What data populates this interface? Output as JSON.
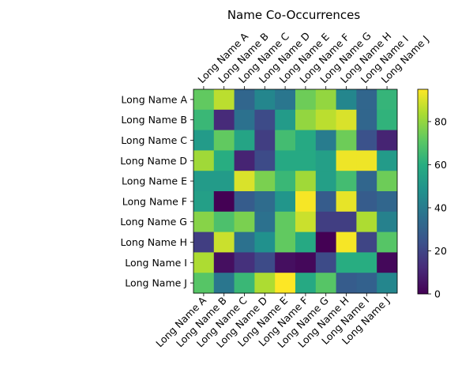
{
  "chart_data": {
    "type": "heatmap",
    "title": "Name Co-Occurrences",
    "xlabel": "",
    "ylabel": "",
    "colormap": "viridis",
    "vmin": 0,
    "vmax": 95,
    "x_categories": [
      "Long Name A",
      "Long Name B",
      "Long Name C",
      "Long Name D",
      "Long Name E",
      "Long Name F",
      "Long Name G",
      "Long Name H",
      "Long Name I",
      "Long Name J"
    ],
    "y_categories": [
      "Long Name A",
      "Long Name B",
      "Long Name C",
      "Long Name D",
      "Long Name E",
      "Long Name F",
      "Long Name G",
      "Long Name H",
      "Long Name I",
      "Long Name J"
    ],
    "values": [
      [
        72,
        86,
        32,
        44,
        38,
        74,
        80,
        44,
        32,
        63
      ],
      [
        64,
        12,
        36,
        22,
        52,
        80,
        86,
        90,
        32,
        62
      ],
      [
        52,
        72,
        56,
        18,
        66,
        58,
        40,
        74,
        24,
        10
      ],
      [
        82,
        60,
        10,
        22,
        58,
        58,
        54,
        93,
        93,
        52
      ],
      [
        52,
        52,
        90,
        76,
        64,
        82,
        54,
        66,
        32,
        74
      ],
      [
        54,
        0,
        28,
        34,
        50,
        94,
        28,
        92,
        28,
        32
      ],
      [
        78,
        68,
        76,
        36,
        72,
        88,
        18,
        18,
        84,
        42
      ],
      [
        18,
        88,
        36,
        48,
        72,
        58,
        0,
        94,
        20,
        70
      ],
      [
        84,
        4,
        14,
        22,
        4,
        2,
        22,
        60,
        60,
        2
      ],
      [
        70,
        38,
        64,
        84,
        95,
        58,
        70,
        28,
        30,
        44
      ]
    ],
    "colorbar": {
      "ticks": [
        0,
        20,
        40,
        60,
        80
      ]
    },
    "grid": false
  }
}
